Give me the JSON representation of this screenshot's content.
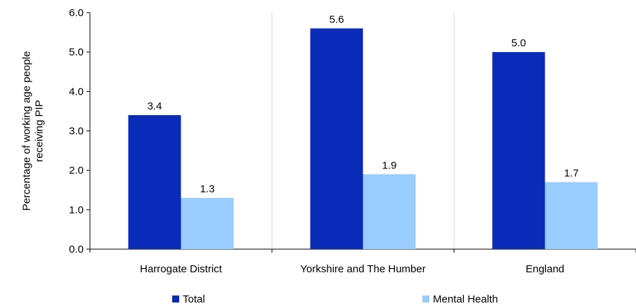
{
  "chart_data": {
    "type": "bar",
    "categories": [
      "Harrogate District",
      "Yorkshire and The Humber",
      "England"
    ],
    "series": [
      {
        "name": "Total",
        "values": [
          3.4,
          5.6,
          5.0
        ],
        "labels": [
          "3.4",
          "5.6",
          "5.0"
        ],
        "color": "#0a2bb8"
      },
      {
        "name": "Mental Health",
        "values": [
          1.3,
          1.9,
          1.7
        ],
        "labels": [
          "1.3",
          "1.9",
          "1.7"
        ],
        "color": "#99ccff"
      }
    ],
    "ylabel": "Percentage of working age people receiving PIP",
    "ylabel_lines": [
      "Percentage of working age people",
      "receiving PIP"
    ],
    "ylim": [
      0,
      6
    ],
    "yticks": [
      "0.0",
      "1.0",
      "2.0",
      "3.0",
      "4.0",
      "5.0",
      "6.0"
    ],
    "grid": {
      "vertical_category_separators": true,
      "horizontal": false
    },
    "legend": "bottom",
    "colors": {
      "grid": "#d9d9d9",
      "axis": "#000000"
    }
  }
}
